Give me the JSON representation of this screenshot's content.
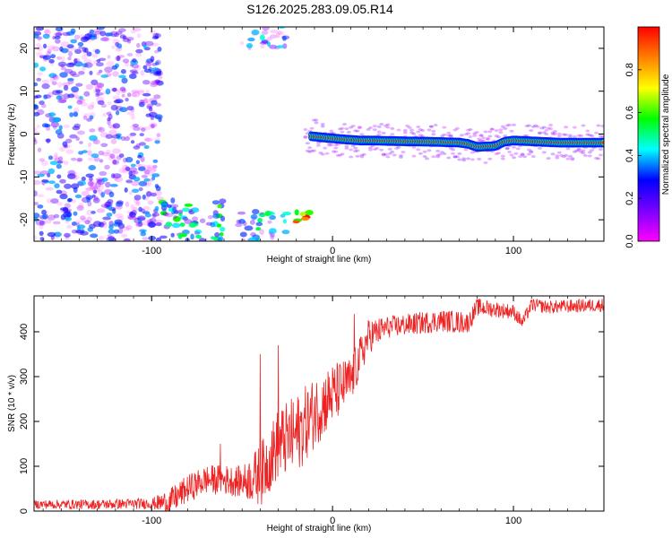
{
  "figure": {
    "title": "S126.2025.283.09.05.R14"
  },
  "chart_data": [
    {
      "type": "heatmap",
      "xlabel": "Height of straight line (km)",
      "ylabel": "Frequency (Hz)",
      "xlim": [
        -165,
        150
      ],
      "ylim": [
        -25,
        25
      ],
      "x_ticks": [
        -100,
        0,
        100
      ],
      "y_ticks": [
        -20,
        -10,
        0,
        10,
        20
      ],
      "grid": false,
      "colorbar": {
        "label": "Normalized spectral amplitude",
        "range": [
          0,
          1
        ],
        "ticks": [
          0.0,
          0.2,
          0.4,
          0.6,
          0.8
        ],
        "colormap": [
          "#ff00ff",
          "#7a00ff",
          "#0000ff",
          "#00ffff",
          "#00ff00",
          "#ffff00",
          "#ff8000",
          "#ff0000"
        ]
      },
      "ridge": {
        "x": [
          -12,
          -5,
          5,
          15,
          20,
          40,
          55,
          70,
          75,
          80,
          90,
          95,
          100,
          110,
          125,
          150
        ],
        "y": [
          -0.5,
          -0.8,
          -1.2,
          -1.5,
          -1.5,
          -1.7,
          -1.8,
          -2.0,
          -2.3,
          -3.0,
          -2.8,
          -1.8,
          -1.5,
          -1.7,
          -2.0,
          -2.0
        ]
      },
      "clusters": [
        {
          "x": [
            -165,
            -95
          ],
          "y": [
            -25,
            25
          ],
          "level": 0.15
        },
        {
          "x": [
            -95,
            -60
          ],
          "y": [
            -25,
            -15
          ],
          "level": 0.35
        },
        {
          "x": [
            -52,
            -25
          ],
          "y": [
            -25,
            -18
          ],
          "level": 0.3
        },
        {
          "x": [
            -22,
            -12
          ],
          "y": [
            -22,
            -18
          ],
          "level": 0.8
        },
        {
          "x": [
            -52,
            -25
          ],
          "y": [
            20,
            25
          ],
          "level": 0.2
        }
      ]
    },
    {
      "type": "line",
      "xlabel": "Height of straight line (km)",
      "ylabel": "SNR (10 * v/v)",
      "xlim": [
        -165,
        150
      ],
      "ylim": [
        0,
        480
      ],
      "x_ticks": [
        -100,
        0,
        100
      ],
      "y_ticks": [
        0,
        100,
        200,
        300,
        400
      ],
      "grid": false,
      "color": "#ee2222",
      "trend": {
        "x": [
          -165,
          -130,
          -100,
          -90,
          -80,
          -70,
          -60,
          -50,
          -40,
          -30,
          -20,
          -10,
          0,
          10,
          20,
          30,
          50,
          60,
          75,
          80,
          100,
          105,
          110,
          120,
          150
        ],
        "y": [
          15,
          15,
          17,
          20,
          50,
          70,
          70,
          65,
          80,
          150,
          170,
          220,
          260,
          290,
          390,
          410,
          420,
          425,
          420,
          455,
          445,
          420,
          460,
          455,
          460
        ]
      },
      "noise": {
        "x": [
          -165,
          -100,
          -90,
          -50,
          -40,
          -20,
          -10,
          0,
          20,
          30,
          70,
          80,
          110,
          150
        ],
        "y": [
          10,
          12,
          30,
          35,
          70,
          90,
          80,
          70,
          40,
          25,
          25,
          20,
          15,
          15
        ]
      },
      "spikes": [
        {
          "x": -62,
          "y": 150
        },
        {
          "x": -40,
          "y": 350
        },
        {
          "x": -30,
          "y": 370
        },
        {
          "x": 12,
          "y": 440
        }
      ]
    }
  ]
}
